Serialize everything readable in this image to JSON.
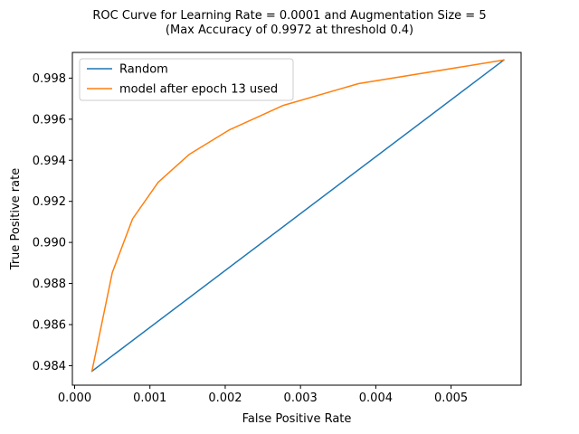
{
  "chart_data": {
    "type": "line",
    "title": "ROC Curve for Learning Rate = 0.0001 and Augmentation Size = 5",
    "subtitle": "(Max Accuracy of 0.9972 at threshold 0.4)",
    "xlabel": "False Positive Rate",
    "ylabel": "True Positive rate",
    "xlim": [
      -3e-05,
      0.00593
    ],
    "ylim": [
      0.98305,
      0.99925
    ],
    "xticks": [
      0.0,
      0.001,
      0.002,
      0.003,
      0.004,
      0.005
    ],
    "xtick_labels": [
      "0.000",
      "0.001",
      "0.002",
      "0.003",
      "0.004",
      "0.005"
    ],
    "yticks": [
      0.984,
      0.986,
      0.988,
      0.99,
      0.992,
      0.994,
      0.996,
      0.998
    ],
    "ytick_labels": [
      "0.984",
      "0.986",
      "0.988",
      "0.990",
      "0.992",
      "0.994",
      "0.996",
      "0.998"
    ],
    "grid": false,
    "legend_position": "top-left",
    "series": [
      {
        "name": "Random",
        "color": "#1f77b4",
        "x": [
          0.00023,
          0.0057
        ],
        "y": [
          0.98373,
          0.99888
        ]
      },
      {
        "name": "model after epoch 13 used",
        "color": "#ff7f0e",
        "x": [
          0.00023,
          0.0005,
          0.00077,
          0.00111,
          0.00152,
          0.00205,
          0.00277,
          0.00377,
          0.0057
        ],
        "y": [
          0.98373,
          0.98853,
          0.99115,
          0.99293,
          0.99428,
          0.99547,
          0.99667,
          0.99773,
          0.99888
        ]
      }
    ]
  }
}
